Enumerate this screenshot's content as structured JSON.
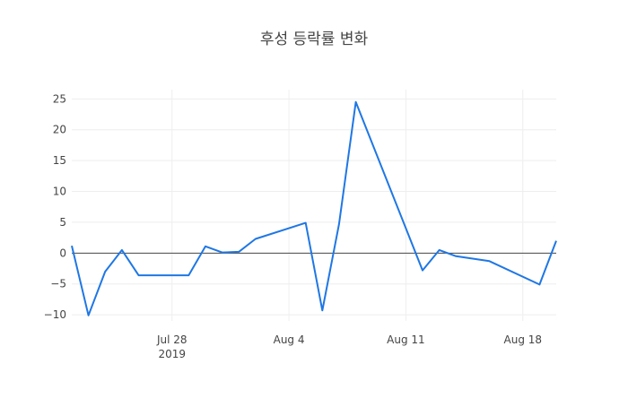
{
  "chart_data": {
    "type": "line",
    "title": "후성 등락률 변화",
    "xlabel": "",
    "ylabel": "",
    "x_start": "2019-07-22",
    "x_end": "2019-08-20",
    "ylim": [
      -11,
      26.5
    ],
    "y_ticks": [
      -10,
      -5,
      0,
      5,
      10,
      15,
      20,
      25
    ],
    "x_ticks": [
      {
        "date": "2019-07-28",
        "label": "Jul 28",
        "sublabel": "2019"
      },
      {
        "date": "2019-08-04",
        "label": "Aug 4",
        "sublabel": ""
      },
      {
        "date": "2019-08-11",
        "label": "Aug 11",
        "sublabel": ""
      },
      {
        "date": "2019-08-18",
        "label": "Aug 18",
        "sublabel": ""
      }
    ],
    "grid": true,
    "zero_line": true,
    "line_color": "#1f77e4",
    "series": [
      {
        "points": [
          {
            "x": "2019-07-22",
            "y": 1.2
          },
          {
            "x": "2019-07-23",
            "y": -10.1
          },
          {
            "x": "2019-07-24",
            "y": -3.0
          },
          {
            "x": "2019-07-25",
            "y": 0.5
          },
          {
            "x": "2019-07-26",
            "y": -3.6
          },
          {
            "x": "2019-07-29",
            "y": -3.6
          },
          {
            "x": "2019-07-30",
            "y": 1.1
          },
          {
            "x": "2019-07-31",
            "y": 0.1
          },
          {
            "x": "2019-08-01",
            "y": 0.2
          },
          {
            "x": "2019-08-02",
            "y": 2.3
          },
          {
            "x": "2019-08-05",
            "y": 4.9
          },
          {
            "x": "2019-08-06",
            "y": -9.3
          },
          {
            "x": "2019-08-07",
            "y": 4.7
          },
          {
            "x": "2019-08-08",
            "y": 24.5
          },
          {
            "x": "2019-08-12",
            "y": -2.8
          },
          {
            "x": "2019-08-13",
            "y": 0.5
          },
          {
            "x": "2019-08-14",
            "y": -0.5
          },
          {
            "x": "2019-08-16",
            "y": -1.3
          },
          {
            "x": "2019-08-19",
            "y": -5.1
          },
          {
            "x": "2019-08-20",
            "y": 2.0
          }
        ]
      }
    ]
  }
}
